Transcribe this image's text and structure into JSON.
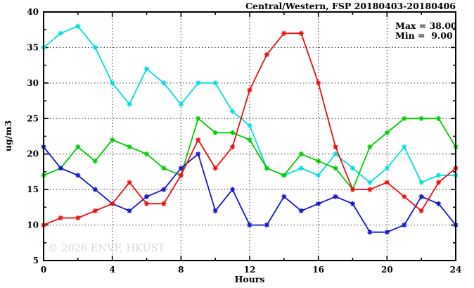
{
  "title": "Central/Western, FSP 20180403-20180406",
  "legend": {
    "max_label": "Max = 38.00",
    "min_label": "Min =  9.00"
  },
  "watermark": "© 2026 ENVF, HKUST",
  "watermark_color": "#d8d8d8",
  "chart_data": {
    "type": "line",
    "title": "Central/Western, FSP 20180403-20180406",
    "xlabel": "Hours",
    "ylabel": "ug/m3",
    "xlim": [
      0,
      24
    ],
    "ylim": [
      5,
      40
    ],
    "x": [
      0,
      1,
      2,
      3,
      4,
      5,
      6,
      7,
      8,
      9,
      10,
      11,
      12,
      13,
      14,
      15,
      16,
      17,
      18,
      19,
      20,
      21,
      22,
      23,
      24
    ],
    "x_major_ticks": [
      0,
      4,
      8,
      12,
      16,
      20,
      24
    ],
    "x_minor_ticks": [
      2,
      6,
      10,
      14,
      18,
      22
    ],
    "y_major_ticks": [
      5,
      10,
      15,
      20,
      25,
      30,
      35,
      40
    ],
    "y_minor_ticks": [
      7.5,
      12.5,
      17.5,
      22.5,
      27.5,
      32.5,
      37.5
    ],
    "x_grid": [
      4,
      8,
      12,
      16,
      20
    ],
    "y_grid": [
      10,
      15,
      20,
      25,
      30,
      35
    ],
    "grid": true,
    "legend_position": "top-right-inside",
    "stats": {
      "max": "38.00",
      "min": "9.00"
    },
    "series": [
      {
        "name": "cyan-series",
        "color": "#00dede",
        "values": [
          35,
          37,
          38,
          35,
          30,
          27,
          32,
          30,
          27,
          30,
          30,
          26,
          24,
          18,
          17,
          18,
          17,
          20,
          18,
          16,
          18,
          21,
          16,
          17,
          17
        ]
      },
      {
        "name": "green-series",
        "color": "#00cc00",
        "values": [
          17,
          18,
          21,
          19,
          22,
          21,
          20,
          18,
          17,
          25,
          23,
          23,
          22,
          18,
          17,
          20,
          19,
          18,
          15,
          21,
          23,
          25,
          25,
          25,
          21
        ]
      },
      {
        "name": "blue-series",
        "color": "#1414cc",
        "values": [
          21,
          18,
          17,
          15,
          13,
          12,
          14,
          15,
          18,
          20,
          12,
          15,
          10,
          10,
          14,
          12,
          13,
          14,
          13,
          9,
          9,
          10,
          14,
          13,
          10
        ]
      },
      {
        "name": "red-series",
        "color": "#ee0e0e",
        "values": [
          10,
          11,
          11,
          12,
          13,
          16,
          13,
          13,
          17,
          22,
          18,
          21,
          29,
          34,
          37,
          37,
          30,
          21,
          15,
          15,
          16,
          14,
          12,
          16,
          18
        ]
      }
    ]
  }
}
